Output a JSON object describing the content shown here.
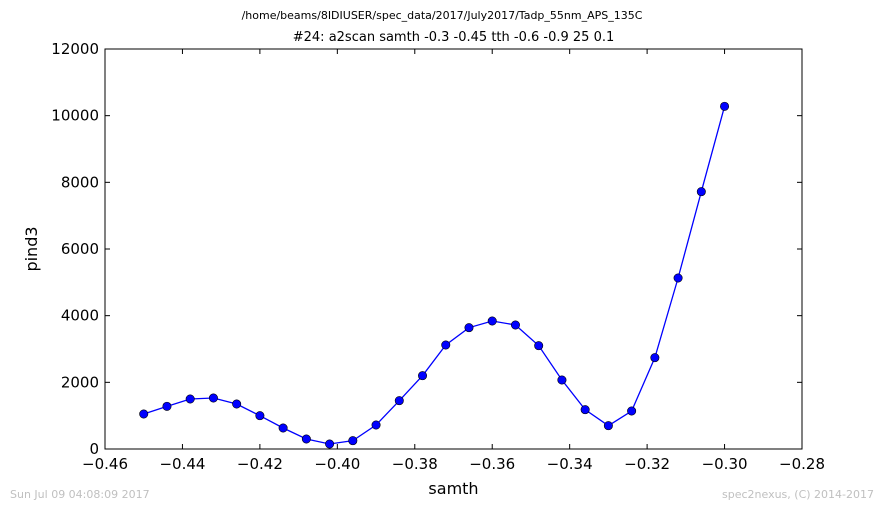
{
  "suptitle": "/home/beams/8IDIUSER/spec_data/2017/July2017/Tadp_55nm_APS_135C",
  "footer": {
    "timestamp": "Sun Jul 09 04:08:09 2017",
    "credit": "spec2nexus, (C) 2014-2017"
  },
  "chart_data": {
    "type": "line",
    "title": "#24: a2scan  samth -0.3 -0.45  tth -0.6 -0.9  25 0.1",
    "xlabel": "samth",
    "ylabel": "pind3",
    "xlim": [
      -0.46,
      -0.28
    ],
    "ylim": [
      0,
      12000
    ],
    "xticks": [
      "−0.46",
      "−0.44",
      "−0.42",
      "−0.40",
      "−0.38",
      "−0.36",
      "−0.34",
      "−0.32",
      "−0.30",
      "−0.28"
    ],
    "xtick_values": [
      -0.46,
      -0.44,
      -0.42,
      -0.4,
      -0.38,
      -0.36,
      -0.34,
      -0.32,
      -0.3,
      -0.28
    ],
    "yticks": [
      "0",
      "2000",
      "4000",
      "6000",
      "8000",
      "10000",
      "12000"
    ],
    "ytick_values": [
      0,
      2000,
      4000,
      6000,
      8000,
      10000,
      12000
    ],
    "grid": false,
    "color": "#0000ff",
    "marker": "circle",
    "series": [
      {
        "x": [
          -0.45,
          -0.444,
          -0.438,
          -0.432,
          -0.426,
          -0.42,
          -0.414,
          -0.408,
          -0.402,
          -0.396,
          -0.39,
          -0.384,
          -0.378,
          -0.372,
          -0.366,
          -0.36,
          -0.354,
          -0.348,
          -0.342,
          -0.336,
          -0.33,
          -0.324,
          -0.318,
          -0.312,
          -0.306,
          -0.3
        ],
        "y": [
          1050,
          1280,
          1500,
          1530,
          1350,
          1000,
          630,
          300,
          150,
          250,
          720,
          1450,
          2200,
          3120,
          3640,
          3840,
          3720,
          3100,
          2070,
          1180,
          700,
          1140,
          2740,
          5130,
          7720,
          10280
        ]
      }
    ]
  }
}
